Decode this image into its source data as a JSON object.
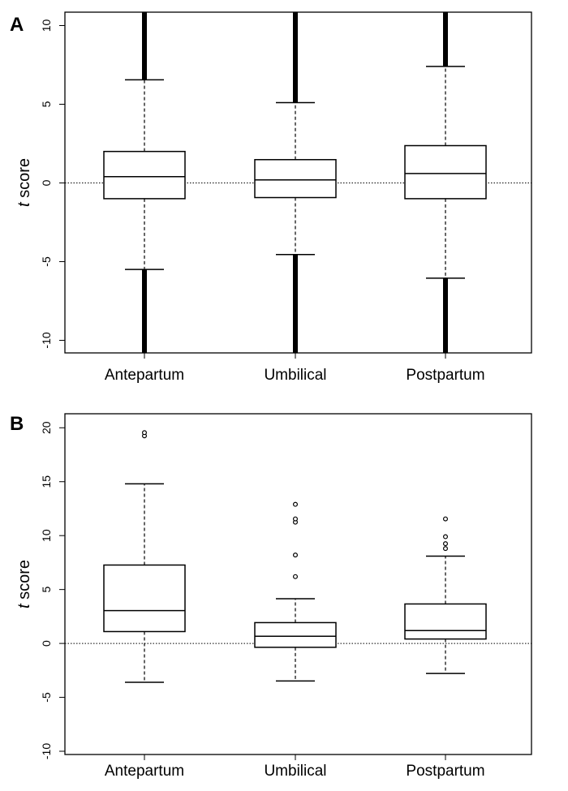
{
  "chart_data": [
    {
      "type": "box",
      "panel_label": "A",
      "ylabel_italic": "t",
      "ylabel_rest": " score",
      "categories": [
        "Antepartum",
        "Umbilical",
        "Postpartum"
      ],
      "yticks": [
        -10,
        -5,
        0,
        5,
        10
      ],
      "ylim": [
        -10.8,
        10.85
      ],
      "reference_line": 0,
      "boxes": [
        {
          "category": "Antepartum",
          "whisker_low": -5.5,
          "q1": -1.0,
          "median": 0.4,
          "q3": 2.0,
          "whisker_high": 6.55,
          "outliers_dense_low": [
            -10.8,
            -5.5
          ],
          "outliers_dense_high": [
            6.55,
            10.85
          ],
          "outliers": []
        },
        {
          "category": "Umbilical",
          "whisker_low": -4.55,
          "q1": -0.93,
          "median": 0.19,
          "q3": 1.48,
          "whisker_high": 5.1,
          "outliers_dense_low": [
            -10.8,
            -4.55
          ],
          "outliers_dense_high": [
            5.1,
            10.85
          ],
          "outliers": []
        },
        {
          "category": "Postpartum",
          "whisker_low": -6.05,
          "q1": -1.0,
          "median": 0.6,
          "q3": 2.37,
          "whisker_high": 7.4,
          "outliers_dense_low": [
            -10.8,
            -6.05
          ],
          "outliers_dense_high": [
            7.4,
            10.85
          ],
          "outliers": []
        }
      ]
    },
    {
      "type": "box",
      "panel_label": "B",
      "ylabel_italic": "t",
      "ylabel_rest": " score",
      "categories": [
        "Antepartum",
        "Umbilical",
        "Postpartum"
      ],
      "yticks": [
        -10,
        -5,
        0,
        5,
        10,
        15,
        20
      ],
      "ylim": [
        -10.3,
        21.3
      ],
      "reference_line": 0,
      "boxes": [
        {
          "category": "Antepartum",
          "whisker_low": -3.6,
          "q1": 1.1,
          "median": 3.05,
          "q3": 7.27,
          "whisker_high": 14.8,
          "outliers": [
            19.25,
            19.55
          ]
        },
        {
          "category": "Umbilical",
          "whisker_low": -3.48,
          "q1": -0.36,
          "median": 0.67,
          "q3": 1.93,
          "whisker_high": 4.15,
          "outliers": [
            6.2,
            8.2,
            11.25,
            11.55,
            12.9
          ]
        },
        {
          "category": "Postpartum",
          "whisker_low": -2.79,
          "q1": 0.41,
          "median": 1.19,
          "q3": 3.66,
          "whisker_high": 8.1,
          "outliers": [
            8.8,
            9.25,
            9.9,
            11.55
          ]
        }
      ]
    }
  ]
}
